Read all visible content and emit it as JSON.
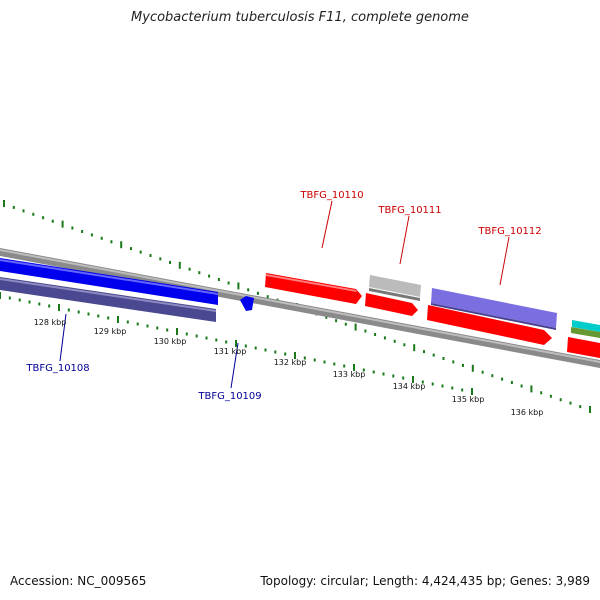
{
  "title": "Mycobacterium tuberculosis F11, complete genome",
  "footer": {
    "accession": "Accession: NC_009565",
    "summary": "Topology: circular; Length: 4,424,435 bp; Genes: 3,989"
  },
  "colors": {
    "backbone": "#8a8a8a",
    "tick": "#1a7a1a",
    "red": "#ff0000",
    "blue": "#0000ee",
    "darkblue": "#4a4890",
    "purple": "#7a6ee0",
    "gray": "#bbbbbb",
    "cyan": "#00cccc",
    "olive": "#669933",
    "label_red": "#cc0000",
    "label_blue": "#000099"
  },
  "scale_labels": [
    "128 kbp",
    "129 kbp",
    "130 kbp",
    "131 kbp",
    "132 kbp",
    "133 kbp",
    "134 kbp",
    "135 kbp",
    "136 kbp"
  ],
  "gene_labels": {
    "top": [
      "TBFG_10110",
      "TBFG_10111",
      "TBFG_10112"
    ],
    "bottom": [
      "TBFG_10108",
      "TBFG_10109"
    ]
  }
}
